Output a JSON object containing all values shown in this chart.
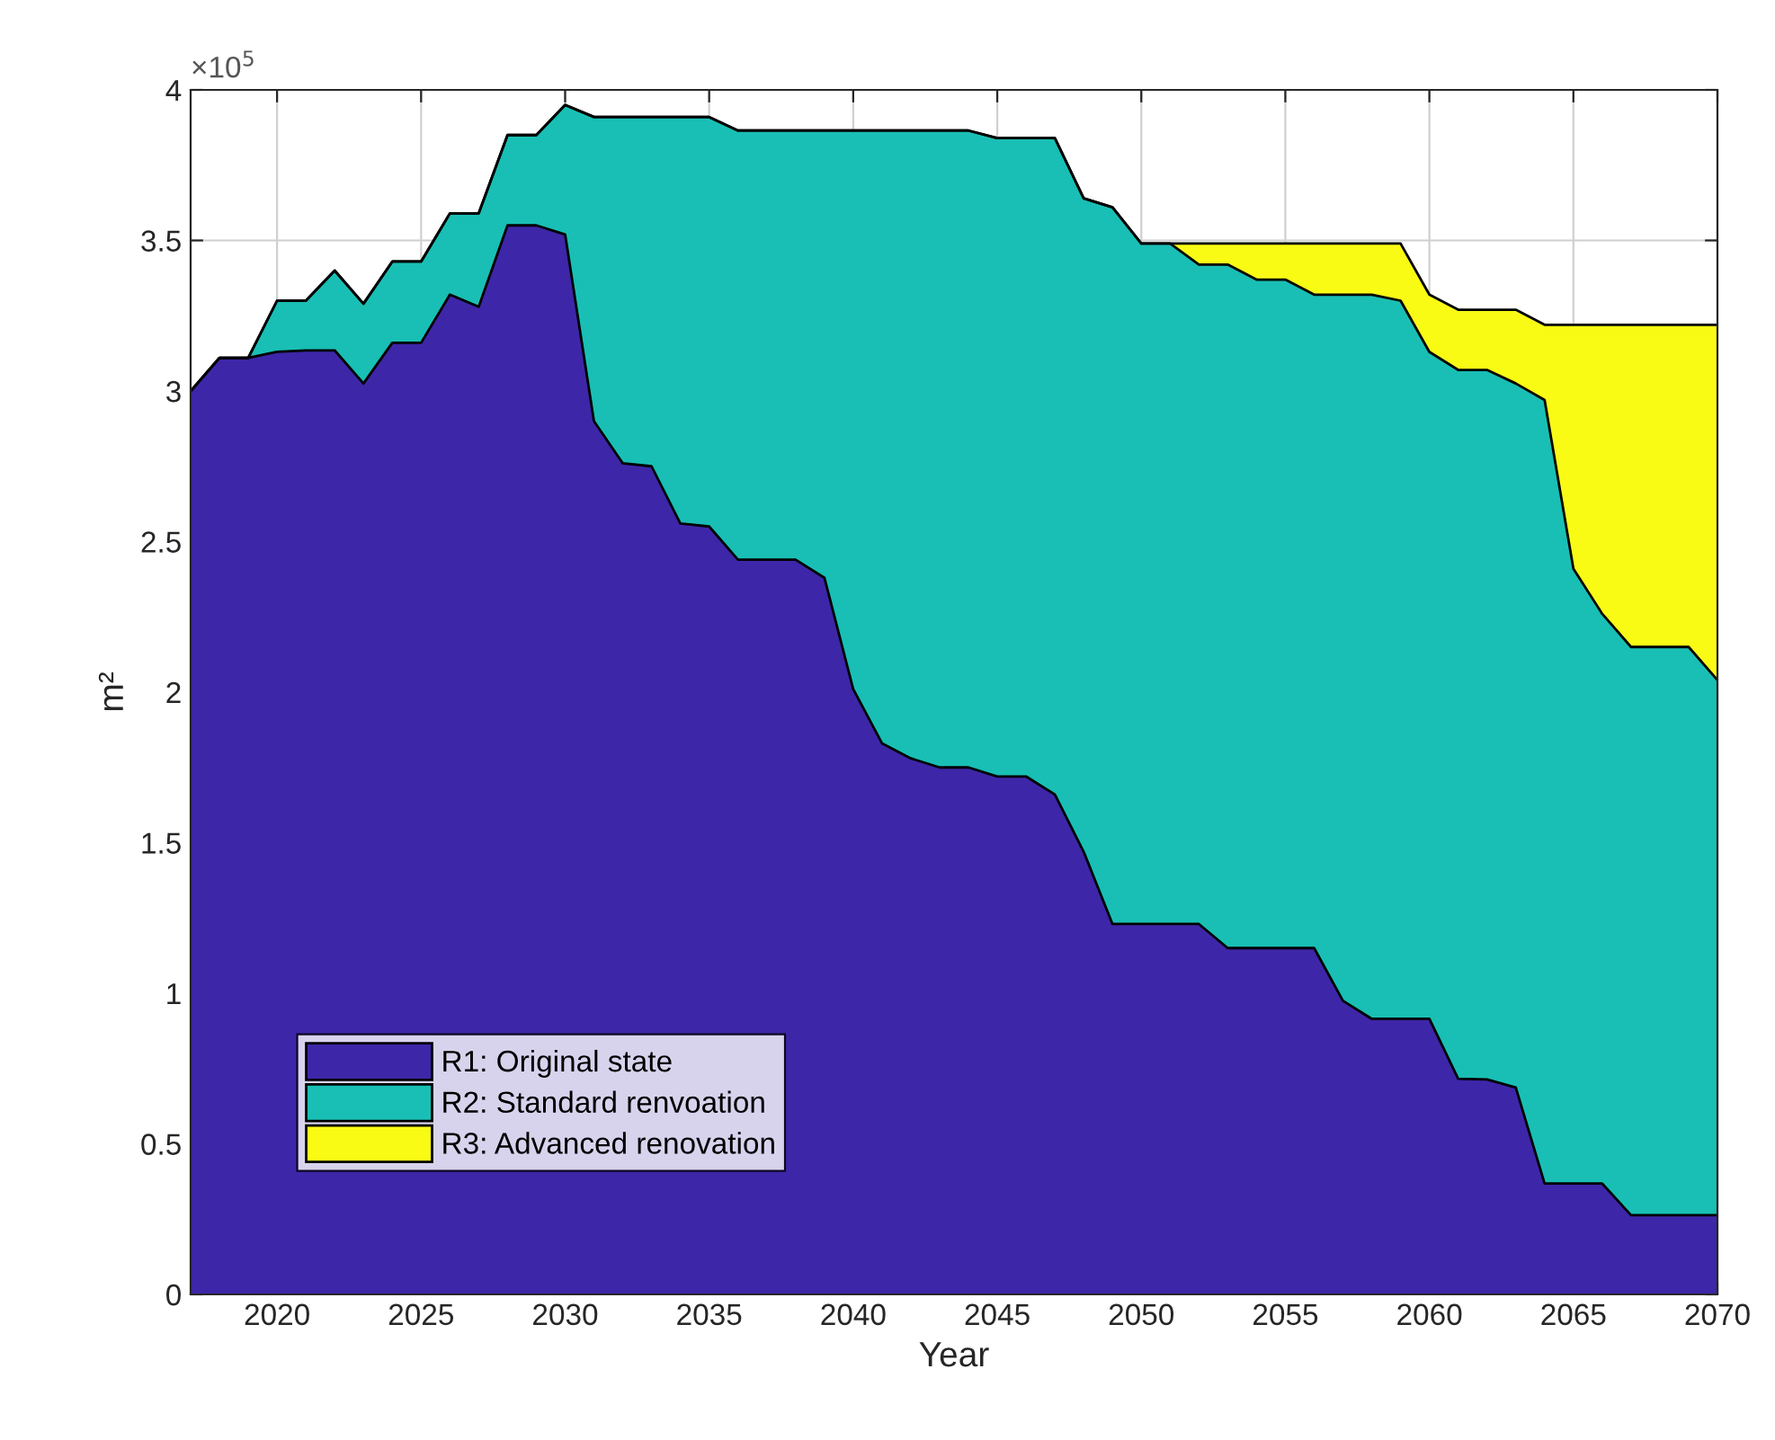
{
  "chart_data": {
    "type": "area",
    "stacked": true,
    "xlabel": "Year",
    "ylabel": "m²",
    "annotations": [
      "×10$^{5}$"
    ],
    "x": [
      2017,
      2018,
      2019,
      2020,
      2021,
      2022,
      2023,
      2024,
      2025,
      2026,
      2027,
      2028,
      2029,
      2030,
      2031,
      2032,
      2033,
      2034,
      2035,
      2036,
      2037,
      2038,
      2039,
      2040,
      2041,
      2042,
      2043,
      2044,
      2045,
      2046,
      2047,
      2048,
      2049,
      2050,
      2051,
      2052,
      2053,
      2054,
      2055,
      2056,
      2057,
      2058,
      2059,
      2060,
      2061,
      2062,
      2063,
      2064,
      2065,
      2066,
      2067,
      2068,
      2069,
      2070
    ],
    "series": [
      {
        "name": "R1: Original state",
        "color": "#3e26a8",
        "values": [
          3.0,
          3.11,
          3.11,
          3.13,
          3.135,
          3.135,
          3.025,
          3.16,
          3.16,
          3.32,
          3.28,
          3.55,
          3.55,
          3.52,
          2.9,
          2.76,
          2.75,
          2.56,
          2.55,
          2.44,
          2.44,
          2.44,
          2.38,
          2.01,
          1.83,
          1.78,
          1.75,
          1.75,
          1.72,
          1.72,
          1.66,
          1.47,
          1.23,
          1.23,
          1.23,
          1.23,
          1.15,
          1.15,
          1.15,
          1.15,
          0.975,
          0.915,
          0.915,
          0.915,
          0.716,
          0.714,
          0.687,
          0.368,
          0.368,
          0.368,
          0.263,
          0.263,
          0.263,
          0.263
        ]
      },
      {
        "name": "R2: Standard renvoation",
        "color": "#19bfb4",
        "values": [
          0,
          0,
          0,
          0.17,
          0.165,
          0.265,
          0.265,
          0.27,
          0.27,
          0.27,
          0.31,
          0.3,
          0.3,
          0.43,
          1.01,
          1.15,
          1.16,
          1.35,
          1.36,
          1.425,
          1.425,
          1.425,
          1.485,
          1.855,
          2.035,
          2.085,
          2.115,
          2.115,
          2.12,
          2.12,
          2.18,
          2.17,
          2.38,
          2.26,
          2.26,
          2.19,
          2.27,
          2.22,
          2.22,
          2.17,
          2.345,
          2.405,
          2.385,
          2.215,
          2.354,
          2.356,
          2.338,
          2.602,
          2.042,
          1.892,
          1.887,
          1.887,
          1.887,
          1.777
        ]
      },
      {
        "name": "R3: Advanced renovation",
        "color": "#f9fb15",
        "values": [
          0,
          0,
          0,
          0,
          0,
          0,
          0,
          0,
          0,
          0,
          0,
          0,
          0,
          0,
          0,
          0,
          0,
          0,
          0,
          0,
          0,
          0,
          0,
          0,
          0,
          0,
          0,
          0,
          0,
          0,
          0,
          0,
          0,
          0,
          0,
          0.07,
          0.07,
          0.12,
          0.12,
          0.17,
          0.17,
          0.17,
          0.19,
          0.19,
          0.2,
          0.2,
          0.245,
          0.25,
          0.81,
          0.96,
          1.07,
          1.07,
          1.07,
          1.18
        ]
      }
    ],
    "xlim": [
      2017,
      2070
    ],
    "xticks": [
      2020,
      2025,
      2030,
      2035,
      2040,
      2045,
      2050,
      2055,
      2060,
      2065,
      2070
    ],
    "ylim": [
      0,
      4
    ],
    "yticks": [
      0,
      0.5,
      1,
      1.5,
      2,
      2.5,
      3,
      3.5,
      4
    ],
    "grid": true,
    "legend": "bottom left"
  }
}
